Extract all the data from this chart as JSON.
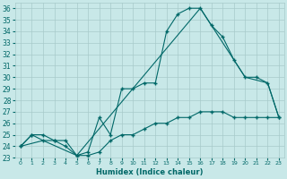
{
  "background_color": "#c8e8e8",
  "grid_color": "#a8caca",
  "line_color": "#006868",
  "xlabel": "Humidex (Indice chaleur)",
  "xlim": [
    -0.5,
    23.5
  ],
  "ylim": [
    23,
    36.5
  ],
  "yticks": [
    23,
    24,
    25,
    26,
    27,
    28,
    29,
    30,
    31,
    32,
    33,
    34,
    35,
    36
  ],
  "xticks": [
    0,
    1,
    2,
    3,
    4,
    5,
    6,
    7,
    8,
    9,
    10,
    11,
    12,
    13,
    14,
    15,
    16,
    17,
    18,
    19,
    20,
    21,
    22,
    23
  ],
  "series1_x": [
    0,
    1,
    2,
    3,
    4,
    5,
    6,
    7,
    8,
    9,
    10,
    11,
    12,
    13,
    14,
    15,
    16,
    17,
    18,
    19,
    20,
    21,
    22,
    23
  ],
  "series1_y": [
    24.0,
    25.0,
    24.5,
    24.5,
    24.0,
    23.2,
    23.5,
    26.5,
    25.0,
    29.0,
    29.0,
    29.5,
    29.5,
    34.0,
    35.5,
    36.0,
    36.0,
    34.5,
    33.5,
    31.5,
    30.0,
    30.0,
    29.5,
    26.5
  ],
  "series2_x": [
    0,
    1,
    2,
    3,
    4,
    5,
    6,
    7,
    8,
    9,
    10,
    11,
    12,
    13,
    14,
    15,
    16,
    17,
    18,
    19,
    20,
    21,
    22,
    23
  ],
  "series2_y": [
    24.0,
    25.0,
    25.0,
    24.5,
    24.5,
    23.2,
    23.2,
    23.5,
    24.5,
    25.0,
    25.0,
    25.5,
    26.0,
    26.0,
    26.5,
    26.5,
    27.0,
    27.0,
    27.0,
    26.5,
    26.5,
    26.5,
    26.5,
    26.5
  ],
  "series3_x": [
    0,
    2,
    5,
    16,
    17,
    19,
    20,
    22,
    23
  ],
  "series3_y": [
    24.0,
    24.5,
    23.2,
    36.0,
    34.5,
    31.5,
    30.0,
    29.5,
    26.5
  ]
}
